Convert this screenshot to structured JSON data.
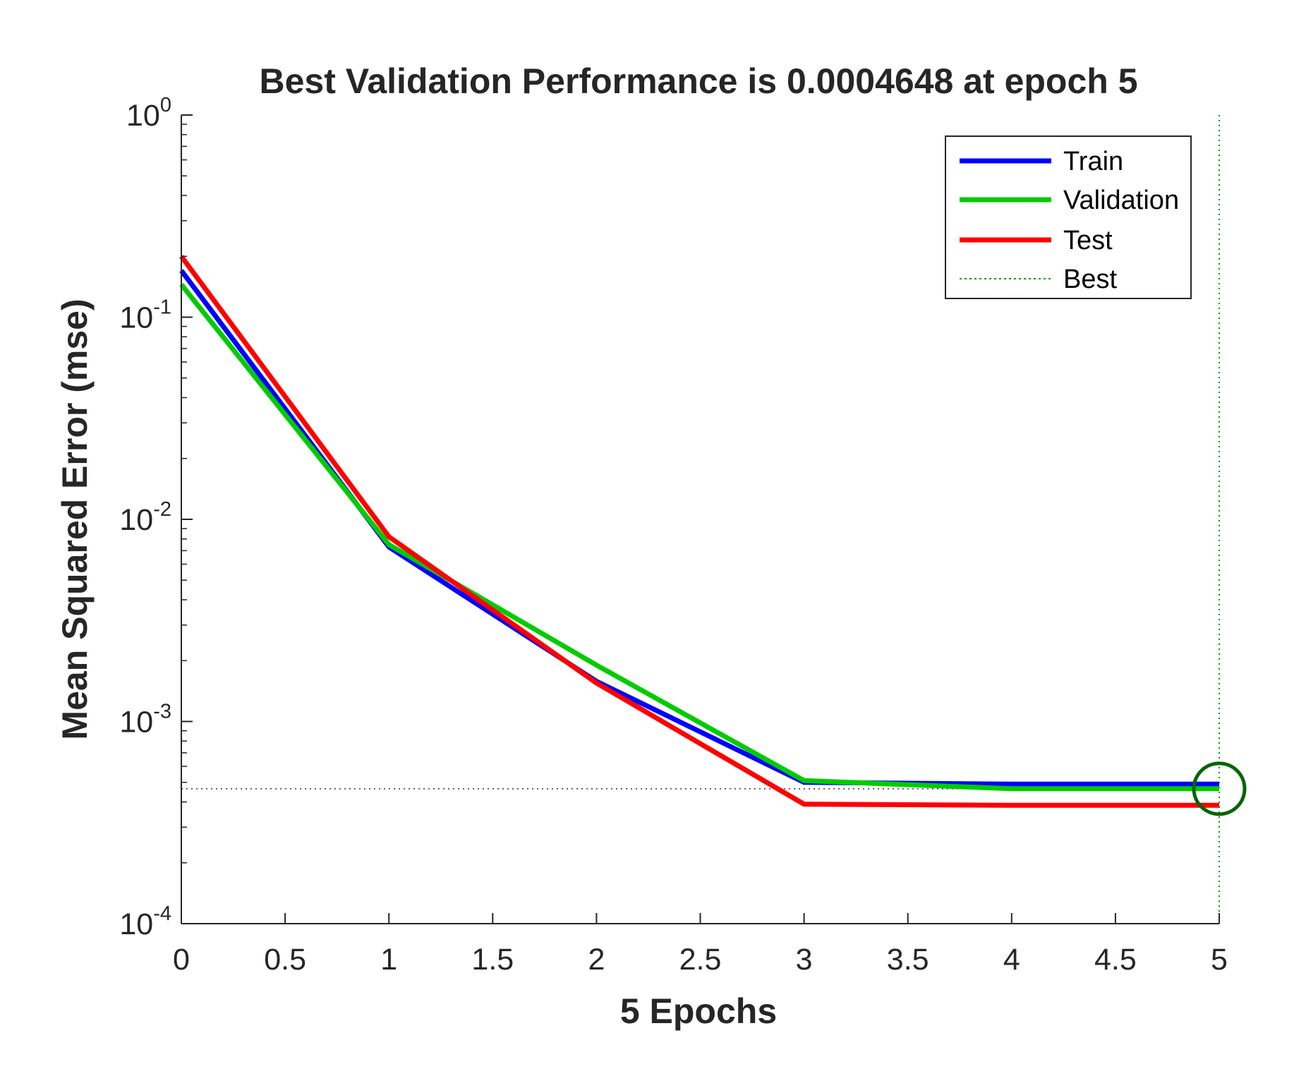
{
  "chart_data": {
    "type": "line",
    "title": "Best Validation Performance is 0.0004648 at epoch 5",
    "xlabel": "5 Epochs",
    "ylabel": "Mean Squared Error  (mse)",
    "xscale": "linear",
    "yscale": "log",
    "xlim": [
      0,
      5
    ],
    "ylim": [
      0.0001,
      1
    ],
    "x_ticks": [
      "0",
      "0.5",
      "1",
      "1.5",
      "2",
      "2.5",
      "3",
      "3.5",
      "4",
      "4.5",
      "5"
    ],
    "x_tick_values": [
      0,
      0.5,
      1,
      1.5,
      2,
      2.5,
      3,
      3.5,
      4,
      4.5,
      5
    ],
    "y_ticks": [
      {
        "base": "10",
        "exp": "0",
        "value": 1
      },
      {
        "base": "10",
        "exp": "-1",
        "value": 0.1
      },
      {
        "base": "10",
        "exp": "-2",
        "value": 0.01
      },
      {
        "base": "10",
        "exp": "-3",
        "value": 0.001
      },
      {
        "base": "10",
        "exp": "-4",
        "value": 0.0001
      }
    ],
    "x": [
      0,
      1,
      2,
      3,
      4,
      5
    ],
    "series": [
      {
        "name": "Train",
        "color": "#0000ff",
        "values": [
          0.17,
          0.0073,
          0.00158,
          0.0005,
          0.00049,
          0.00049
        ]
      },
      {
        "name": "Validation",
        "color": "#00cc00",
        "values": [
          0.145,
          0.0075,
          0.0019,
          0.00051,
          0.000465,
          0.0004648
        ]
      },
      {
        "name": "Test",
        "color": "#ff0000",
        "values": [
          0.2,
          0.0082,
          0.00155,
          0.00039,
          0.000385,
          0.000385
        ]
      }
    ],
    "best": {
      "name": "Best",
      "color": "#009900",
      "epoch": 5,
      "value": 0.0004648,
      "circle_color": "#006600"
    },
    "legend": {
      "position": "top-right",
      "entries": [
        "Train",
        "Validation",
        "Test",
        "Best"
      ]
    },
    "grid": false
  }
}
